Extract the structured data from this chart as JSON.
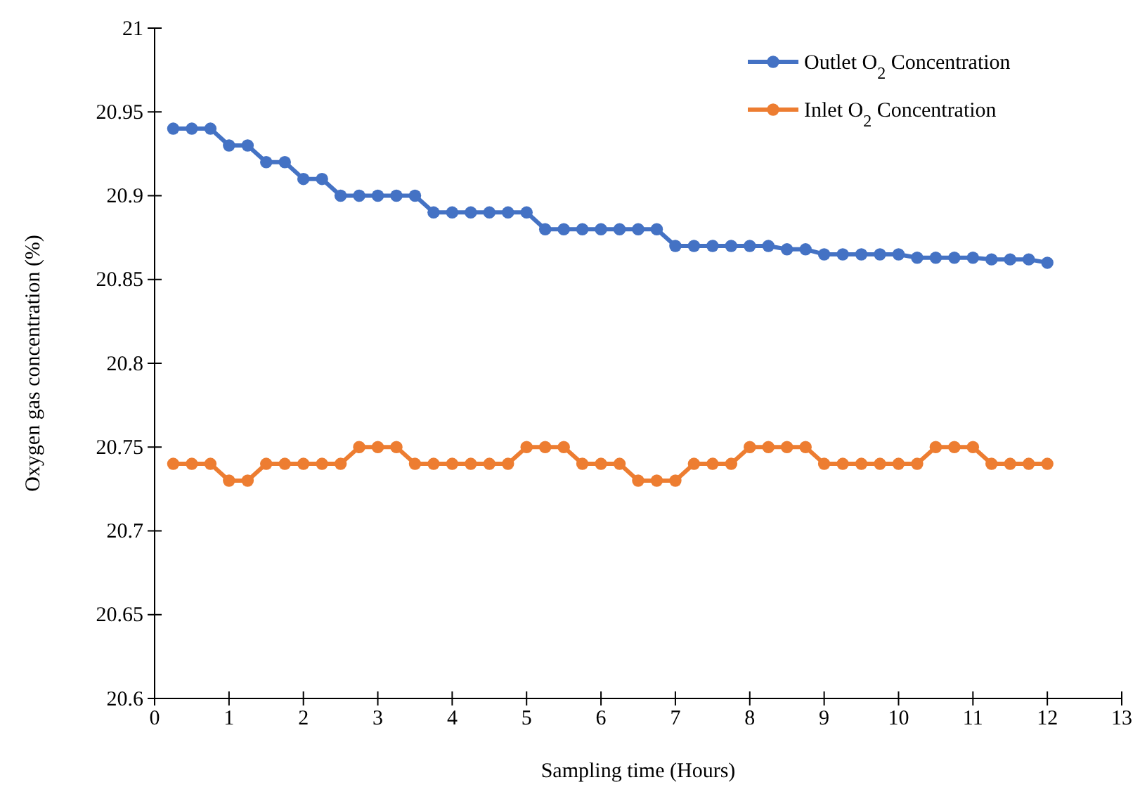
{
  "chart_data": {
    "type": "line",
    "xlabel": "Sampling time (Hours)",
    "ylabel": "Oxygen gas concentration (%)",
    "x": [
      0.25,
      0.5,
      0.75,
      1,
      1.25,
      1.5,
      1.75,
      2,
      2.25,
      2.5,
      2.75,
      3,
      3.25,
      3.5,
      3.75,
      4,
      4.25,
      4.5,
      4.75,
      5,
      5.25,
      5.5,
      5.75,
      6,
      6.25,
      6.5,
      6.75,
      7,
      7.25,
      7.5,
      7.75,
      8,
      8.25,
      8.5,
      8.75,
      9,
      9.25,
      9.5,
      9.75,
      10,
      10.25,
      10.5,
      10.75,
      11,
      11.25,
      11.5,
      11.75,
      12
    ],
    "series": [
      {
        "name": "Outlet O$_{2}$ Concentration",
        "color": "#4472c4",
        "values": [
          20.94,
          20.94,
          20.94,
          20.93,
          20.93,
          20.92,
          20.92,
          20.91,
          20.91,
          20.9,
          20.9,
          20.9,
          20.9,
          20.9,
          20.89,
          20.89,
          20.89,
          20.89,
          20.89,
          20.89,
          20.88,
          20.88,
          20.88,
          20.88,
          20.88,
          20.88,
          20.88,
          20.87,
          20.87,
          20.87,
          20.87,
          20.87,
          20.87,
          20.868,
          20.868,
          20.865,
          20.865,
          20.865,
          20.865,
          20.865,
          20.863,
          20.863,
          20.863,
          20.863,
          20.862,
          20.862,
          20.862,
          20.86
        ]
      },
      {
        "name": "Inlet O$_{2}$ Concentration",
        "color": "#ed7d31",
        "values": [
          20.74,
          20.74,
          20.74,
          20.73,
          20.73,
          20.74,
          20.74,
          20.74,
          20.74,
          20.74,
          20.75,
          20.75,
          20.75,
          20.74,
          20.74,
          20.74,
          20.74,
          20.74,
          20.74,
          20.75,
          20.75,
          20.75,
          20.74,
          20.74,
          20.74,
          20.73,
          20.73,
          20.73,
          20.74,
          20.74,
          20.74,
          20.75,
          20.75,
          20.75,
          20.75,
          20.74,
          20.74,
          20.74,
          20.74,
          20.74,
          20.74,
          20.75,
          20.75,
          20.75,
          20.74,
          20.74,
          20.74,
          20.74
        ]
      }
    ],
    "xlim": [
      0,
      13
    ],
    "xticks": [
      0,
      1,
      2,
      3,
      4,
      5,
      6,
      7,
      8,
      9,
      10,
      11,
      12,
      13
    ],
    "ylim": [
      20.6,
      21
    ],
    "yticks": [
      20.6,
      20.65,
      20.7,
      20.75,
      20.8,
      20.85,
      20.9,
      20.95,
      21
    ],
    "grid": false,
    "legend": "top right",
    "marker": "circle",
    "line_style": "solid"
  }
}
